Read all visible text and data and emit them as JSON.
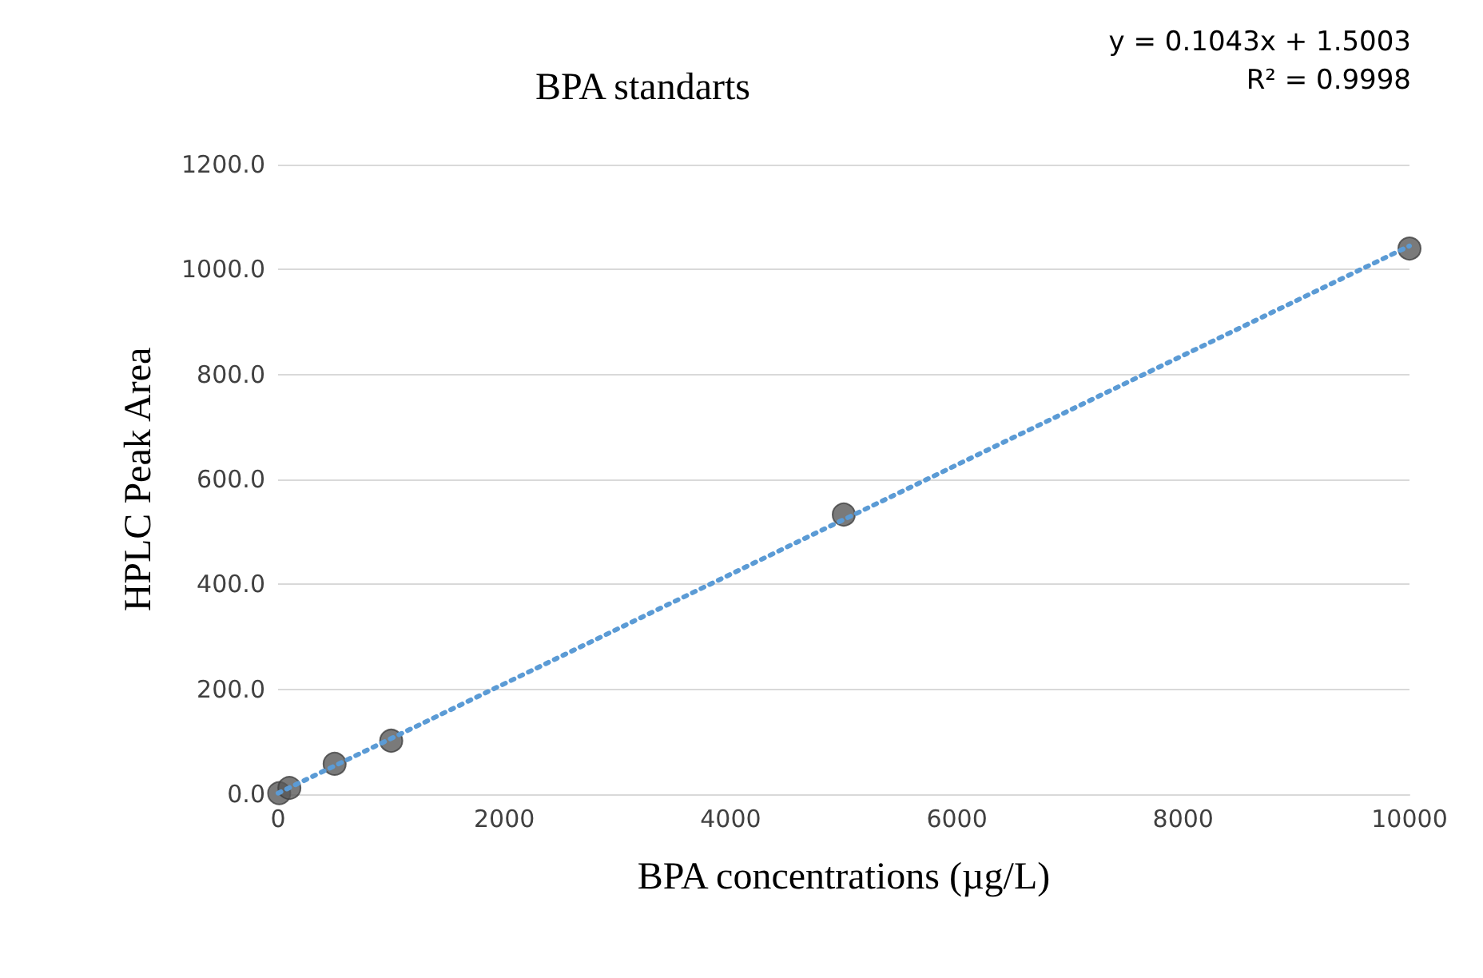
{
  "chart_data": {
    "type": "scatter",
    "title": "BPA standarts",
    "xlabel": "BPA concentrations (µg/L)",
    "ylabel": "HPLC Peak Area",
    "annotations": [
      "y = 0.1043x + 1.5003",
      "R² = 0.9998"
    ],
    "series": [
      {
        "color": "#595959",
        "x": [
          10,
          100,
          500,
          1000,
          5000,
          10000
        ],
        "values": [
          2,
          12,
          58,
          102,
          533,
          1040
        ],
        "marker": "circle"
      },
      {
        "type": "line",
        "color": "#5b9bd5",
        "x": [
          0,
          10000
        ],
        "values": [
          2,
          1045
        ],
        "line_style": "dotted",
        "marker": "none"
      }
    ],
    "xlim": [
      0,
      10000
    ],
    "xticks": [
      0,
      2000,
      4000,
      6000,
      8000,
      10000
    ],
    "ylim": [
      0,
      1200
    ],
    "yticks": [
      {
        "value": 0,
        "label": "0.0"
      },
      {
        "value": 200,
        "label": "200.0"
      },
      {
        "value": 400,
        "label": "400.0"
      },
      {
        "value": 600,
        "label": "600.0"
      },
      {
        "value": 800,
        "label": "800.0"
      },
      {
        "value": 1000,
        "label": "1000.0"
      },
      {
        "value": 1200,
        "label": "1200.0"
      }
    ],
    "grid": "y"
  }
}
